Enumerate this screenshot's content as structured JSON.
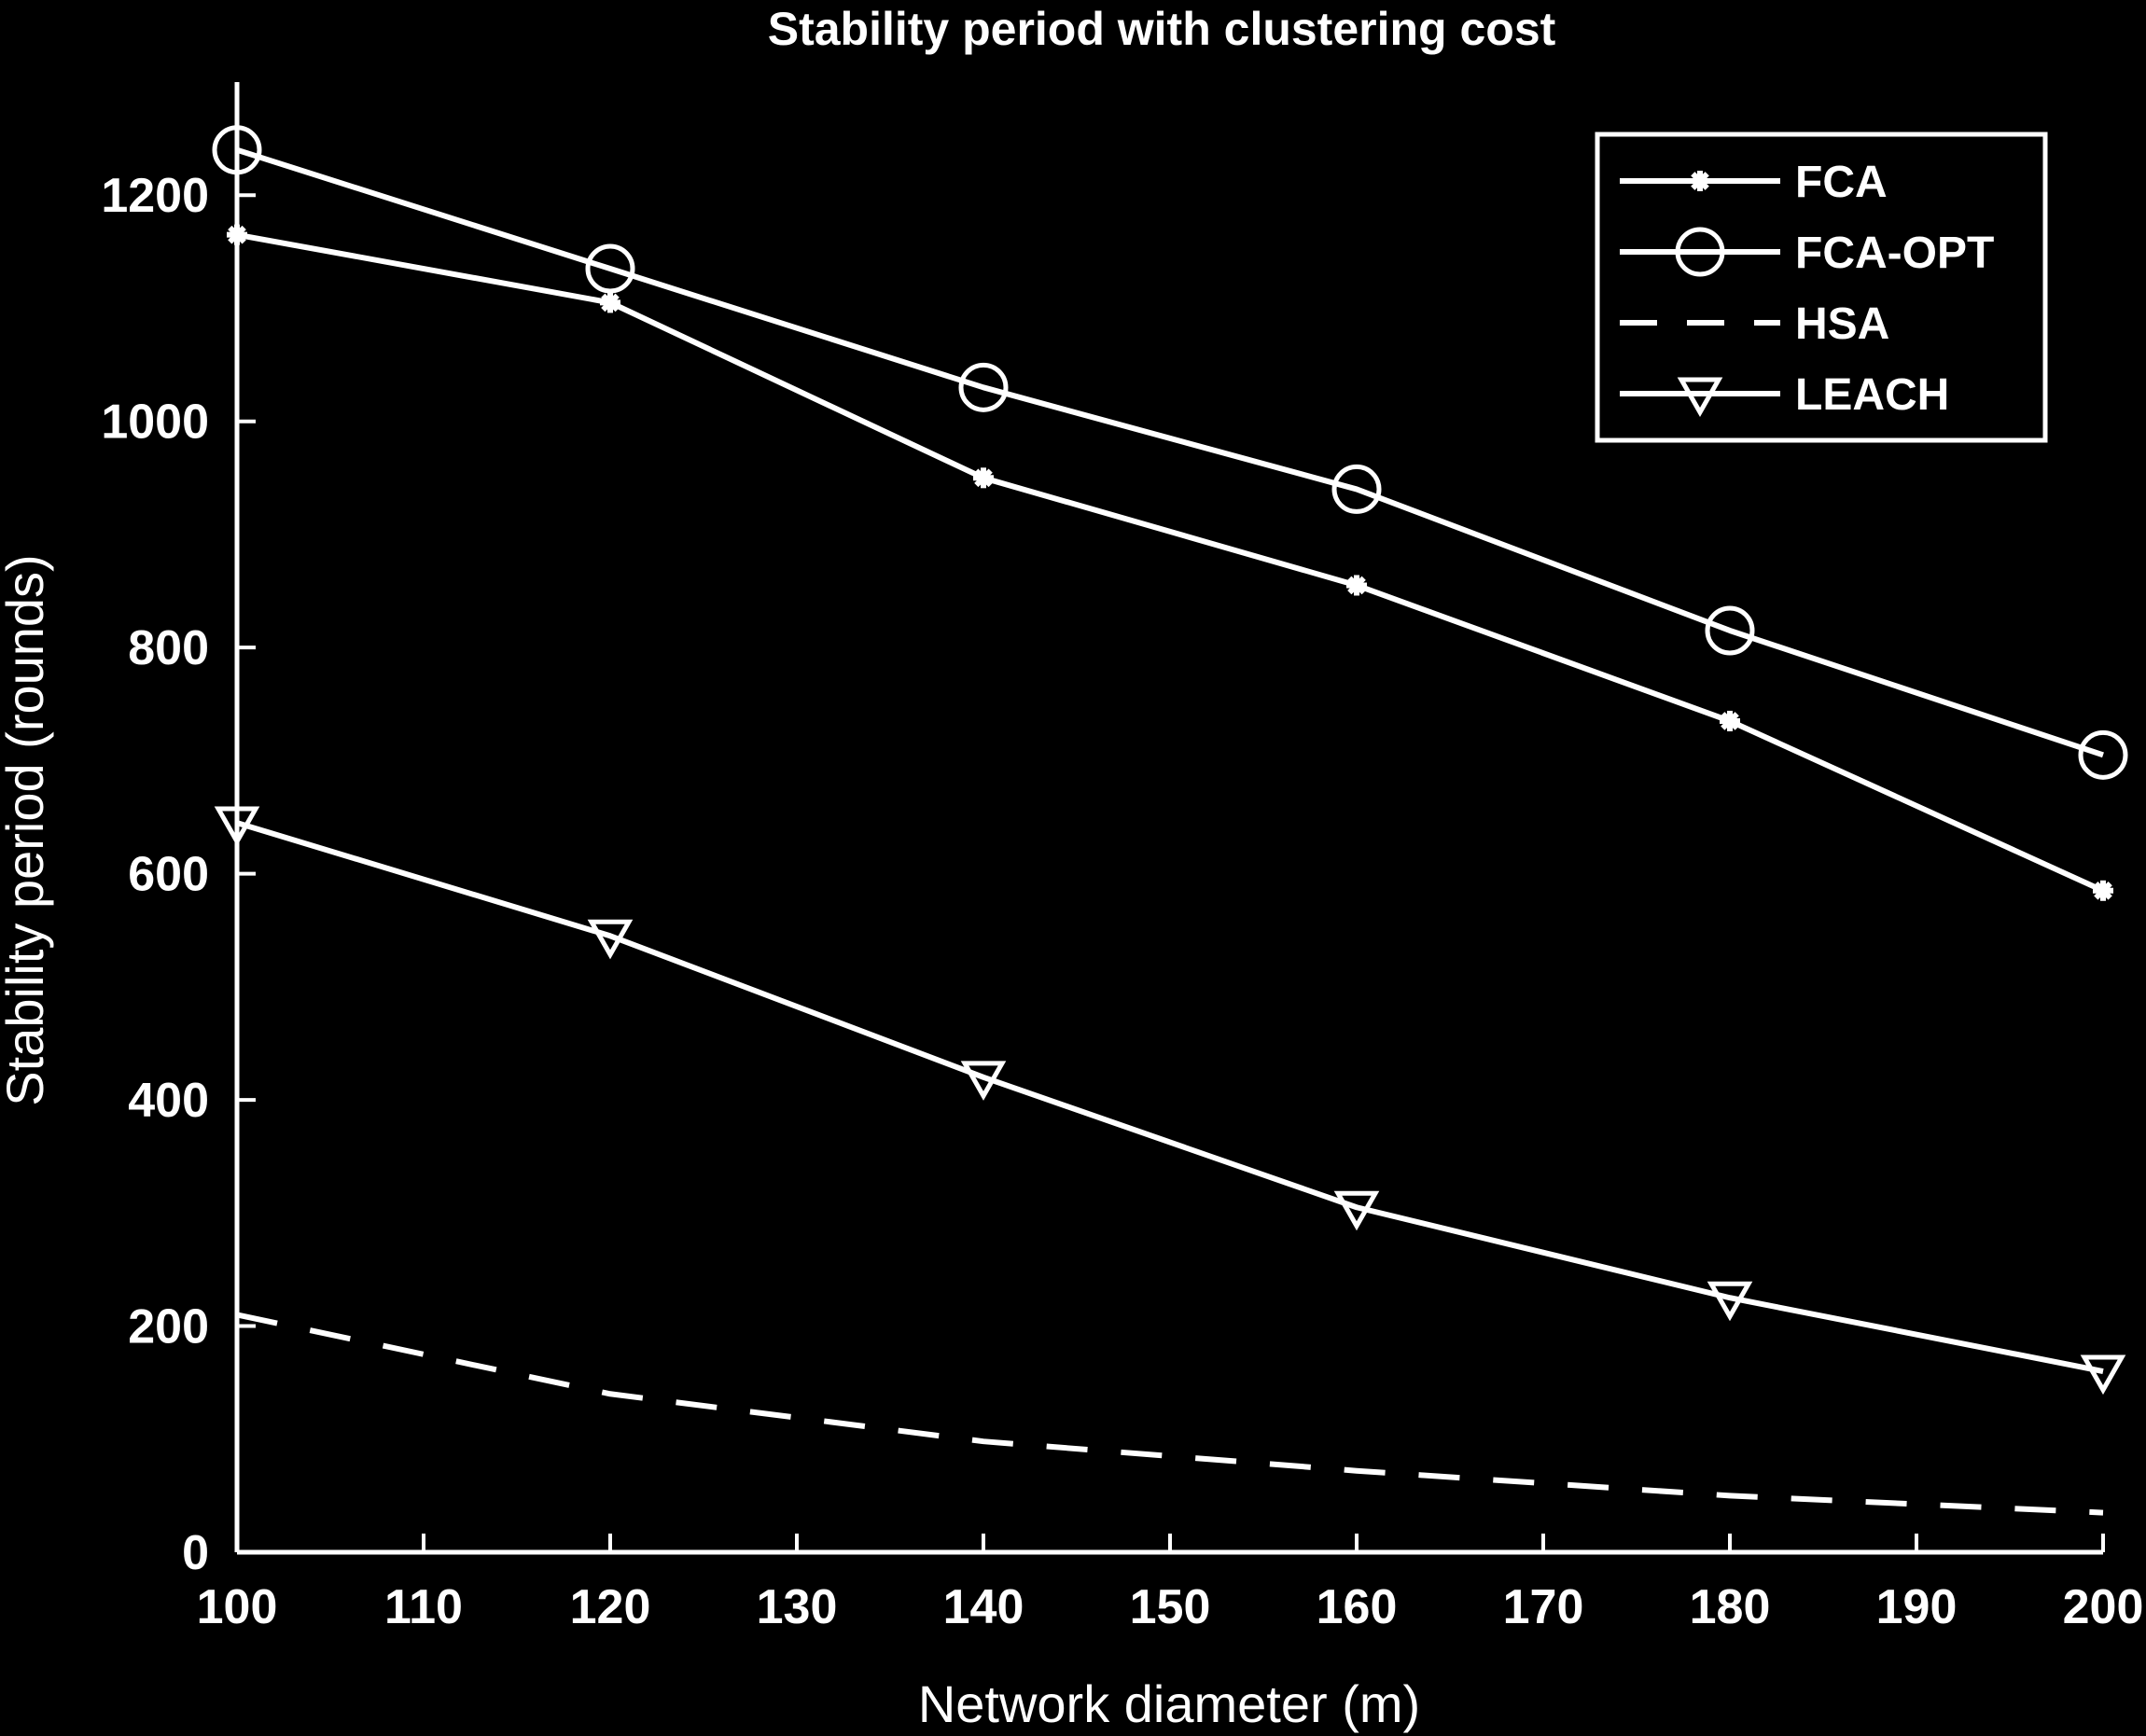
{
  "chart_data": {
    "type": "line",
    "title": "Stability period with clustering cost",
    "xlabel": "Network diameter (m)",
    "ylabel": "Stability period (rounds)",
    "xlim": [
      100,
      200
    ],
    "ylim": [
      0,
      1300
    ],
    "xticks": [
      100,
      110,
      120,
      130,
      140,
      150,
      160,
      170,
      180,
      190,
      200
    ],
    "yticks": [
      0,
      200,
      400,
      600,
      800,
      1000,
      1200
    ],
    "grid": false,
    "legend_position": "top-right",
    "x": [
      100,
      120,
      140,
      160,
      180,
      200
    ],
    "series": [
      {
        "name": "FCA",
        "marker": "star",
        "line": "solid",
        "values": [
          1165,
          1105,
          950,
          855,
          735,
          585
        ]
      },
      {
        "name": "FCA-OPT",
        "marker": "circle",
        "line": "solid",
        "values": [
          1240,
          1135,
          1030,
          940,
          815,
          705
        ]
      },
      {
        "name": "HSA",
        "marker": "none",
        "line": "dashed",
        "values": [
          210,
          140,
          98,
          72,
          50,
          35
        ]
      },
      {
        "name": "LEACH",
        "marker": "triangle-down",
        "line": "solid",
        "values": [
          645,
          545,
          420,
          305,
          225,
          160
        ]
      }
    ],
    "colors": {
      "background": "#000000",
      "foreground": "#ffffff"
    }
  }
}
